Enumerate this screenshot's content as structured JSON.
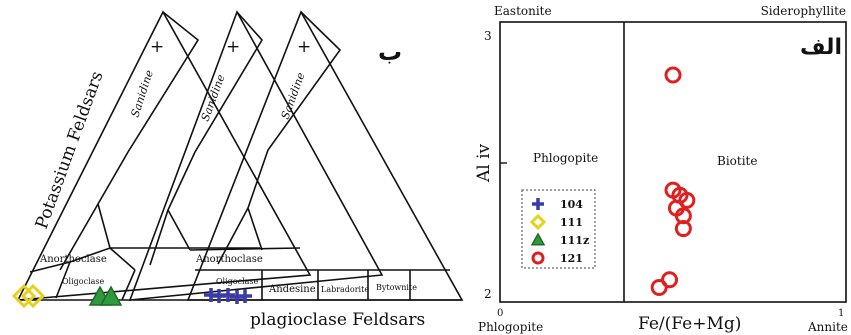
{
  "left_panel": {
    "panel_label": "ب",
    "side_label": "Potassium Feldsars",
    "base_label": "plagioclase Feldsars",
    "triangles": [
      {
        "apex_symbol": "+",
        "field_labels": [
          "Sanidine",
          "Anorthoclase",
          "Oligoclase"
        ]
      },
      {
        "apex_symbol": "+",
        "field_labels": [
          "Sanidine",
          "Anorthoclase",
          "Oligoclase"
        ]
      },
      {
        "apex_symbol": "+",
        "field_labels": [
          "Sanidine",
          "Andesine",
          "Labradorite",
          "Bytownite"
        ]
      }
    ],
    "sample_groups": [
      {
        "sample": "111",
        "marker": "diamond",
        "color": "#e6d21e",
        "count": 2
      },
      {
        "sample": "111z",
        "marker": "triangle",
        "color": "#2e9a3c",
        "count": 2
      },
      {
        "sample": "104",
        "marker": "cross",
        "color": "#3a3aa8",
        "count": 5
      }
    ]
  },
  "right_panel": {
    "panel_label": "الف",
    "corner_labels": {
      "top_left": "Eastonite",
      "top_right": "Siderophyllite",
      "bottom_left": "Phlogopite",
      "bottom_right": "Annite"
    },
    "field_labels": {
      "left": "Phlogopite",
      "right": "Biotite"
    }
  },
  "chart_data": {
    "type": "scatter",
    "xlabel": "Fe/(Fe+Mg)",
    "ylabel": "Al iv",
    "xlim": [
      0,
      1
    ],
    "ylim": [
      2,
      3
    ],
    "x_ticks": [
      "0",
      "1"
    ],
    "y_ticks": [
      "2",
      "3"
    ],
    "divider_x": 0.33,
    "legend": {
      "placement": "left-middle",
      "entries": [
        {
          "label": "104",
          "marker": "cross",
          "color": "#3a3aa8"
        },
        {
          "label": "111",
          "marker": "diamond",
          "color": "#e6d21e"
        },
        {
          "label": "111z",
          "marker": "triangle",
          "color": "#2e9a3c"
        },
        {
          "label": "121",
          "marker": "circle",
          "color": "#e02020"
        }
      ]
    },
    "series": [
      {
        "name": "121",
        "marker": "circle",
        "color": "#e02020",
        "points": [
          [
            0.5,
            2.84
          ],
          [
            0.5,
            2.39
          ],
          [
            0.52,
            2.37
          ],
          [
            0.54,
            2.35
          ],
          [
            0.51,
            2.32
          ],
          [
            0.53,
            2.29
          ],
          [
            0.53,
            2.24
          ],
          [
            0.49,
            2.04
          ],
          [
            0.46,
            2.01
          ]
        ]
      }
    ]
  }
}
